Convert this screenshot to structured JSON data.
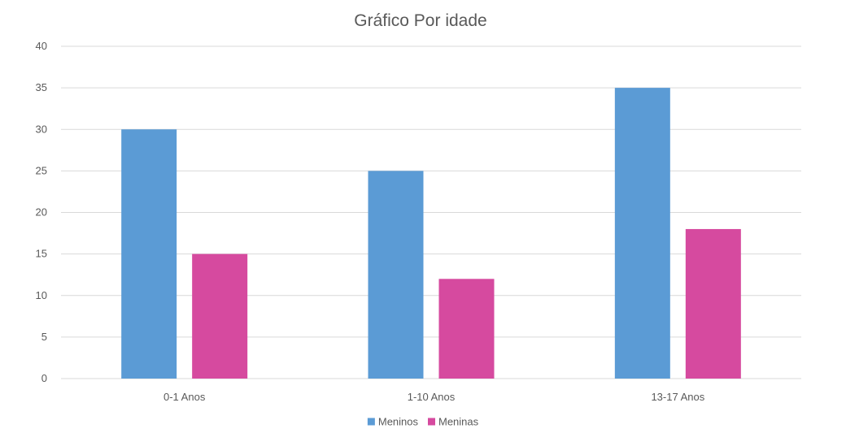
{
  "chart_data": {
    "type": "bar",
    "title": "Gráfico Por idade",
    "xlabel": "",
    "ylabel": "",
    "categories": [
      "0-1 Anos",
      "1-10 Anos",
      "13-17 Anos"
    ],
    "series": [
      {
        "name": "Meninos",
        "values": [
          30,
          25,
          35
        ],
        "color": "#5b9bd5"
      },
      {
        "name": "Meninas",
        "values": [
          15,
          12,
          18
        ],
        "color": "#d64a9f"
      }
    ],
    "ylim": [
      0,
      40
    ],
    "yticks": [
      0,
      5,
      10,
      15,
      20,
      25,
      30,
      35,
      40
    ],
    "grid": true,
    "legend_position": "bottom"
  }
}
